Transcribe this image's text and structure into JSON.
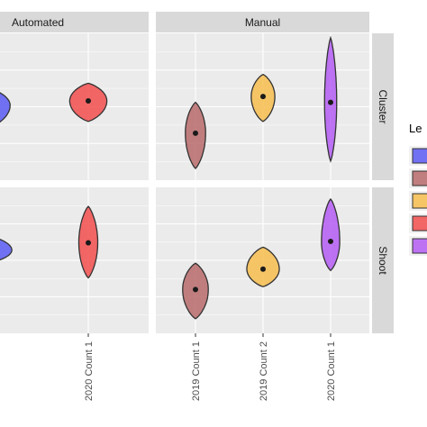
{
  "chart_data": {
    "type": "violin",
    "facet_columns": [
      "Automated",
      "Manual"
    ],
    "facet_rows": [
      "Cluster",
      "Shoot"
    ],
    "x_ticks": {
      "Automated": [
        "2020 Count 1"
      ],
      "Manual": [
        "2019 Count 1",
        "2019 Count 2",
        "2020 Count 1"
      ]
    },
    "legend_title": "Le",
    "legend_entries": [
      {
        "color": "#5b5bf5"
      },
      {
        "color": "#b86a6a"
      },
      {
        "color": "#f7bd4d"
      },
      {
        "color": "#f24d4d"
      },
      {
        "color": "#b45cf5"
      }
    ],
    "y_unit_note": "relative, no y tick labels visible",
    "ylim": [
      0,
      100
    ],
    "grid": true,
    "violins": [
      {
        "panel": "Automated-Cluster",
        "x": "(clipped)",
        "color": "#5b5bf5",
        "median": 51,
        "min": 35,
        "max": 63,
        "half_width": 0.7
      },
      {
        "panel": "Automated-Cluster",
        "x": "2020 Count 1",
        "color": "#f24d4d",
        "median": 54,
        "min": 40,
        "max": 66,
        "half_width": 0.55
      },
      {
        "panel": "Manual-Cluster",
        "x": "2019 Count 1",
        "color": "#b86a6a",
        "median": 32,
        "min": 8,
        "max": 53,
        "half_width": 0.3
      },
      {
        "panel": "Manual-Cluster",
        "x": "2019 Count 2",
        "color": "#f7bd4d",
        "median": 57,
        "min": 40,
        "max": 72,
        "half_width": 0.35
      },
      {
        "panel": "Manual-Cluster",
        "x": "2020 Count 1",
        "color": "#b45cf5",
        "median": 53,
        "min": 13,
        "max": 97,
        "half_width": 0.18
      },
      {
        "panel": "Automated-Shoot",
        "x": "(clipped)",
        "color": "#5b5bf5",
        "median": 57,
        "min": 48,
        "max": 67,
        "half_width": 0.75
      },
      {
        "panel": "Automated-Shoot",
        "x": "2020 Count 1",
        "color": "#f24d4d",
        "median": 62,
        "min": 38,
        "max": 87,
        "half_width": 0.28
      },
      {
        "panel": "Manual-Shoot",
        "x": "2019 Count 1",
        "color": "#b86a6a",
        "median": 30,
        "min": 10,
        "max": 48,
        "half_width": 0.38
      },
      {
        "panel": "Manual-Shoot",
        "x": "2019 Count 2",
        "color": "#f7bd4d",
        "median": 44,
        "min": 32,
        "max": 59,
        "half_width": 0.48
      },
      {
        "panel": "Manual-Shoot",
        "x": "2020 Count 1",
        "color": "#b45cf5",
        "median": 63,
        "min": 43,
        "max": 92,
        "half_width": 0.27
      }
    ]
  }
}
